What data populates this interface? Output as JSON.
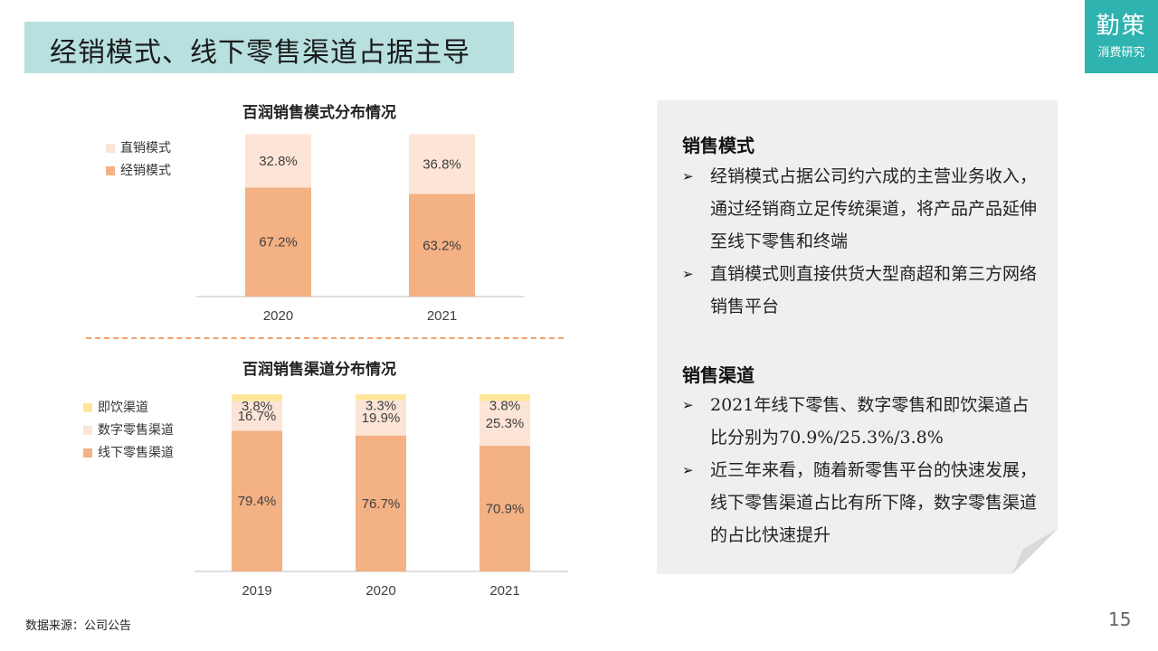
{
  "title": "经销模式、线下零售渠道占据主导",
  "logo": {
    "main": "勤策",
    "sub": "消费研究"
  },
  "chart_data": [
    {
      "type": "bar",
      "stacked": true,
      "title": "百润销售模式分布情况",
      "categories": [
        "2020",
        "2021"
      ],
      "series": [
        {
          "name": "经销模式",
          "values": [
            67.2,
            63.2
          ],
          "color": "#f4b183"
        },
        {
          "name": "直销模式",
          "values": [
            32.8,
            36.8
          ],
          "color": "#fce4d6"
        }
      ],
      "unit": "%",
      "legend_position": "top-left"
    },
    {
      "type": "bar",
      "stacked": true,
      "title": "百润销售渠道分布情况",
      "categories": [
        "2019",
        "2020",
        "2021"
      ],
      "series": [
        {
          "name": "线下零售渠道",
          "values": [
            79.4,
            76.7,
            70.9
          ],
          "color": "#f4b183"
        },
        {
          "name": "数字零售渠道",
          "values": [
            16.7,
            19.9,
            25.3
          ],
          "color": "#fce4d6"
        },
        {
          "name": "即饮渠道",
          "values": [
            3.8,
            3.3,
            3.8
          ],
          "color": "#ffe699"
        }
      ],
      "unit": "%",
      "legend_position": "top-left"
    }
  ],
  "panel": {
    "sections": [
      {
        "title": "销售模式",
        "bullets": [
          "经销模式占据公司约六成的主营业务收入，通过经销商立足传统渠道，将产品产品延伸至线下零售和终端",
          "直销模式则直接供货大型商超和第三方网络销售平台"
        ]
      },
      {
        "title": "销售渠道",
        "bullets": [
          "2021年线下零售、数字零售和即饮渠道占比分别为70.9%/25.3%/3.8%",
          "近三年来看，随着新零售平台的快速发展，线下零售渠道占比有所下降，数字零售渠道的占比快速提升"
        ]
      }
    ],
    "arrow_glyph": "➢"
  },
  "source": "数据来源：公司公告",
  "page_number": "15"
}
